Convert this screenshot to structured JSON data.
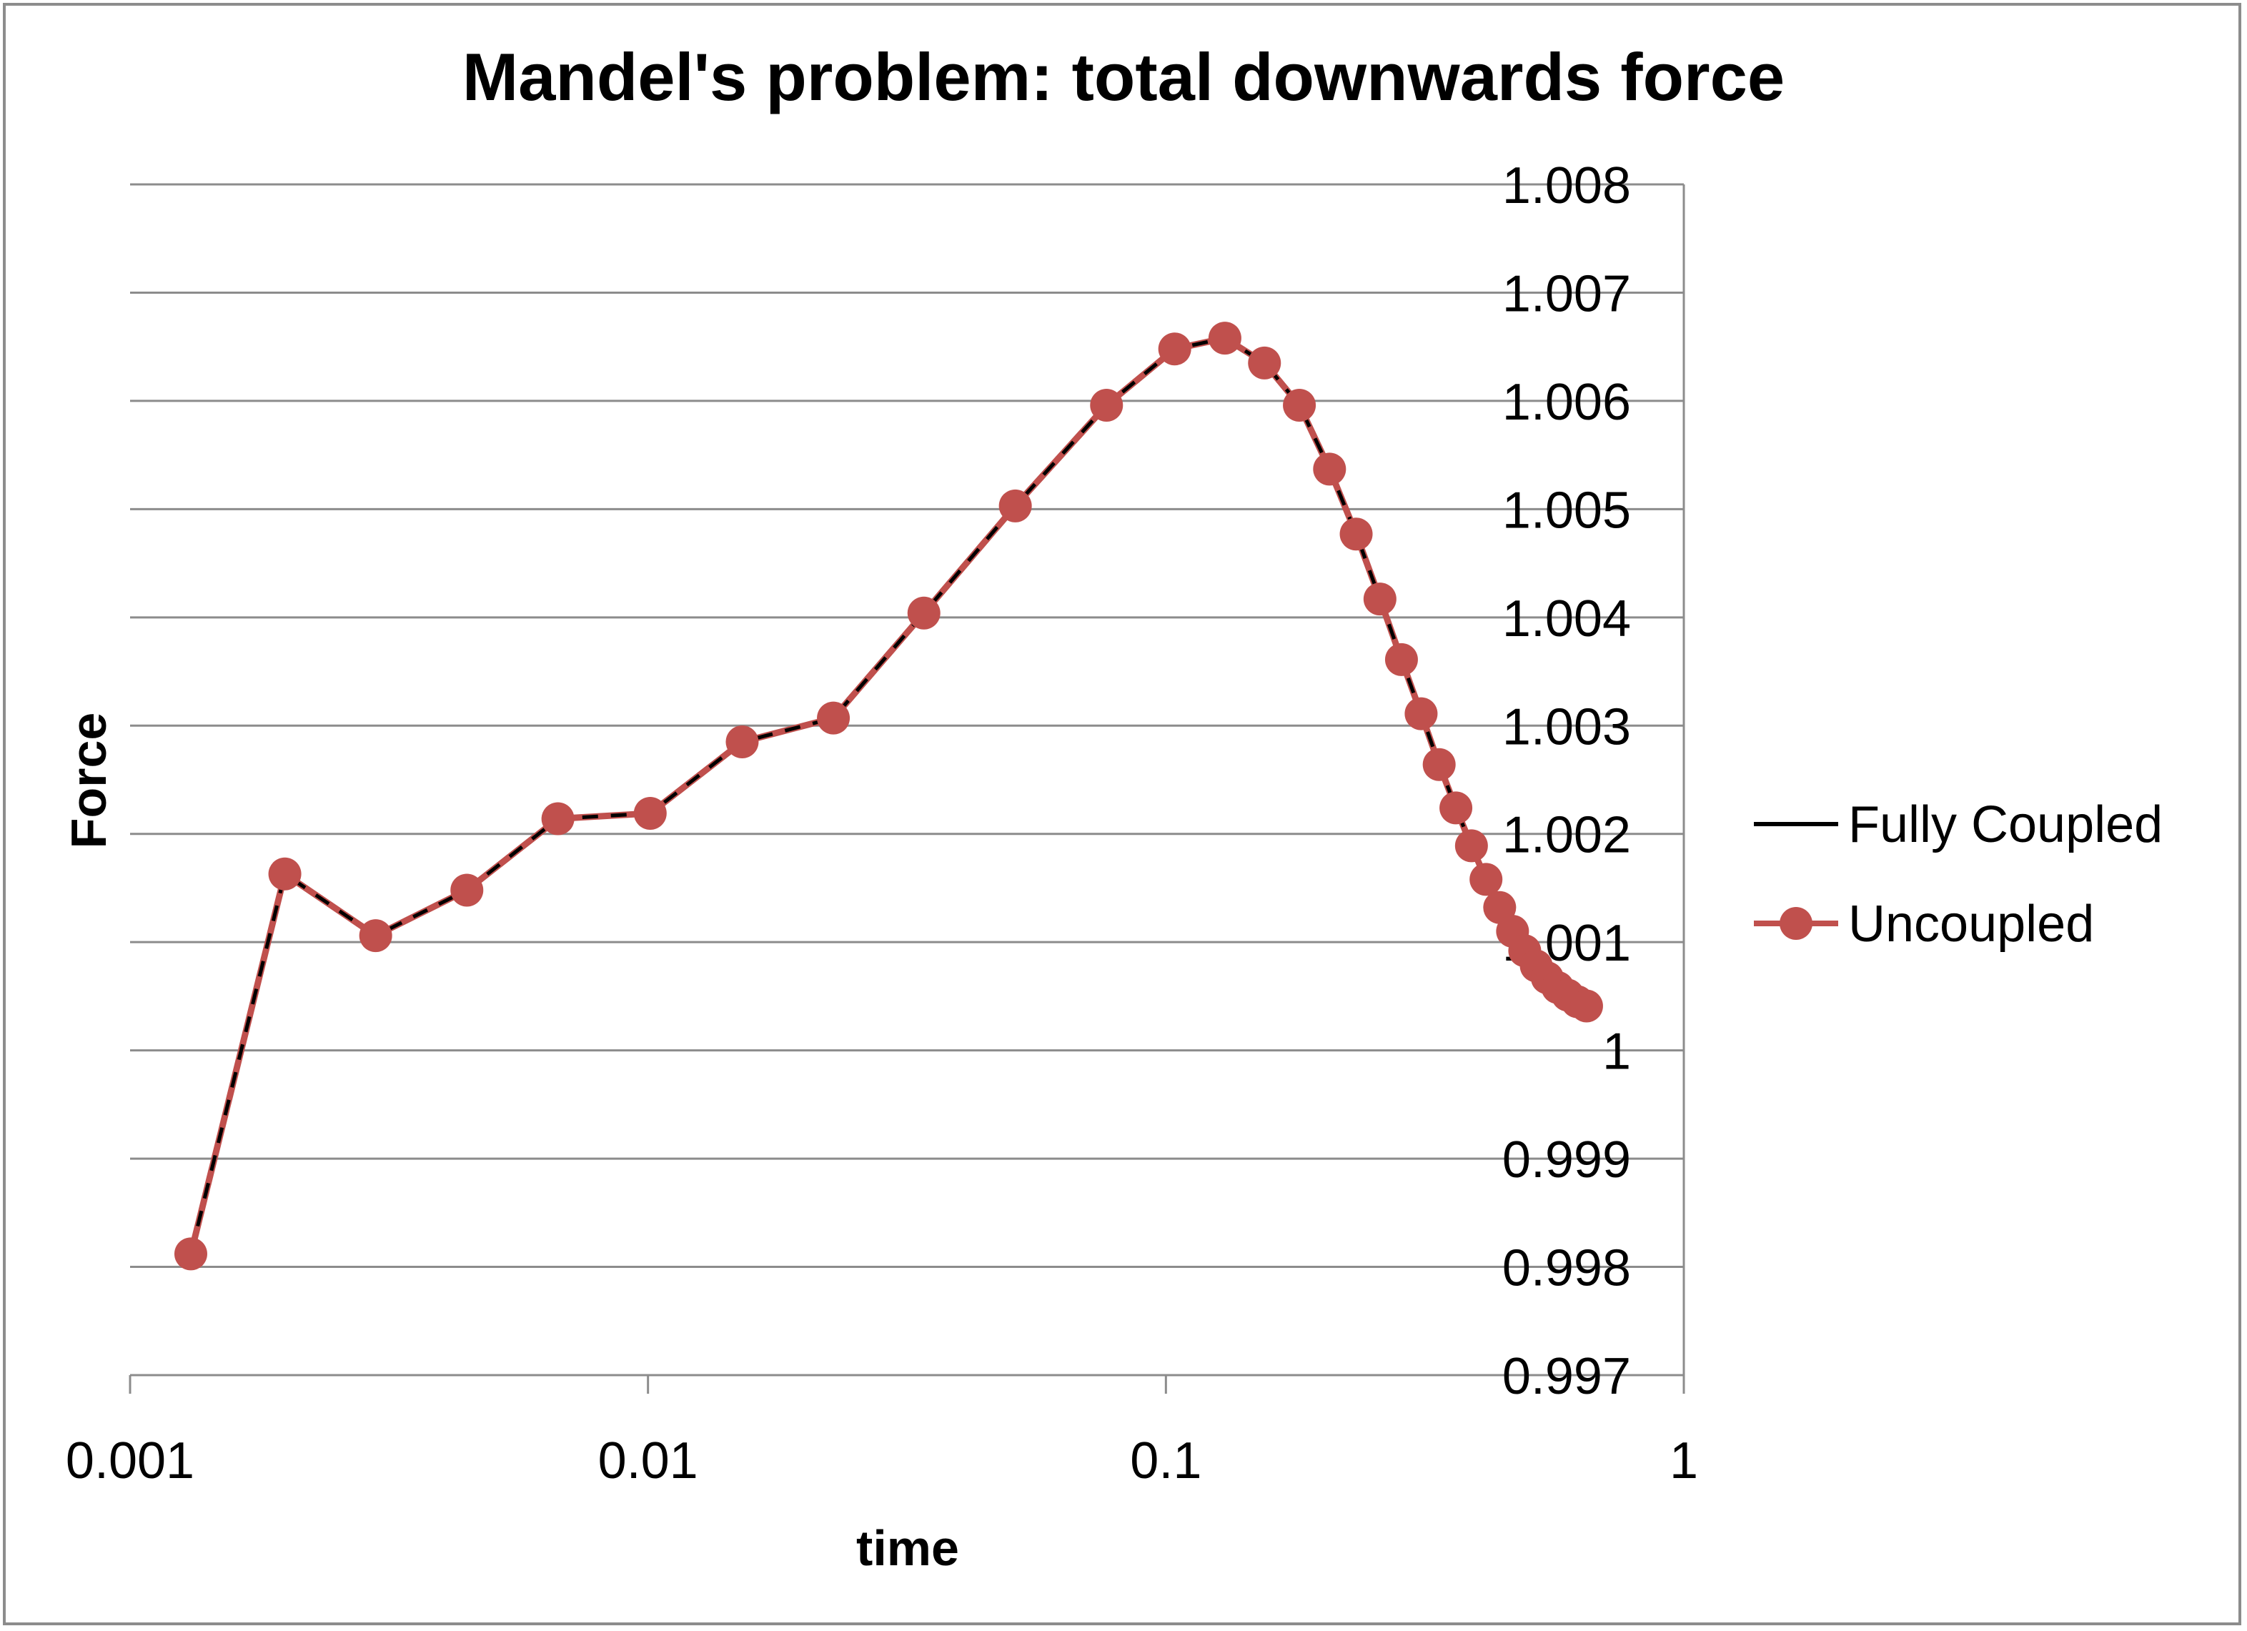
{
  "chart_data": {
    "type": "line",
    "title": "Mandel's problem: total downwards force",
    "xlabel": "time",
    "ylabel": "Force",
    "x_scale": "log",
    "xlim": [
      0.001,
      1
    ],
    "ylim": [
      0.997,
      1.008
    ],
    "x_ticks": [
      "0.001",
      "0.01",
      "0.1",
      "1"
    ],
    "y_ticks": [
      "1.008",
      "1.007",
      "1.006",
      "1.005",
      "1.004",
      "1.003",
      "1.002",
      "1.001",
      "1",
      "0.999",
      "0.998",
      "0.997"
    ],
    "grid": "horizontal",
    "legend_position": "right",
    "x": [
      0.00131,
      0.00199,
      0.00298,
      0.00447,
      0.0067,
      0.0101,
      0.0152,
      0.0228,
      0.0341,
      0.0512,
      0.0768,
      0.104,
      0.13,
      0.155,
      0.181,
      0.207,
      0.233,
      0.259,
      0.285,
      0.311,
      0.337,
      0.363,
      0.389,
      0.415,
      0.441,
      0.467,
      0.493,
      0.519,
      0.545,
      0.571,
      0.597,
      0.623,
      0.649
    ],
    "series": [
      {
        "name": "Fully Coupled",
        "color": "#000000",
        "marker": "none",
        "values": [
          0.99812,
          1.00163,
          1.00106,
          1.00148,
          1.00214,
          1.00219,
          1.00285,
          1.00307,
          1.00404,
          1.00503,
          1.00596,
          1.00648,
          1.00658,
          1.00635,
          1.00596,
          1.00537,
          1.00477,
          1.00417,
          1.00361,
          1.00311,
          1.00264,
          1.00224,
          1.00189,
          1.00158,
          1.00132,
          1.0011,
          1.00092,
          1.00078,
          1.00067,
          1.00058,
          1.00051,
          1.00045,
          1.00041
        ]
      },
      {
        "name": "Uncoupled",
        "color": "#c0504d",
        "marker": "circle",
        "values": [
          0.99812,
          1.00163,
          1.00106,
          1.00148,
          1.00214,
          1.00219,
          1.00285,
          1.00307,
          1.00404,
          1.00503,
          1.00596,
          1.00648,
          1.00658,
          1.00635,
          1.00596,
          1.00537,
          1.00477,
          1.00417,
          1.00361,
          1.00311,
          1.00264,
          1.00224,
          1.00189,
          1.00158,
          1.00132,
          1.0011,
          1.00092,
          1.00078,
          1.00067,
          1.00058,
          1.00051,
          1.00045,
          1.00041
        ]
      }
    ]
  }
}
